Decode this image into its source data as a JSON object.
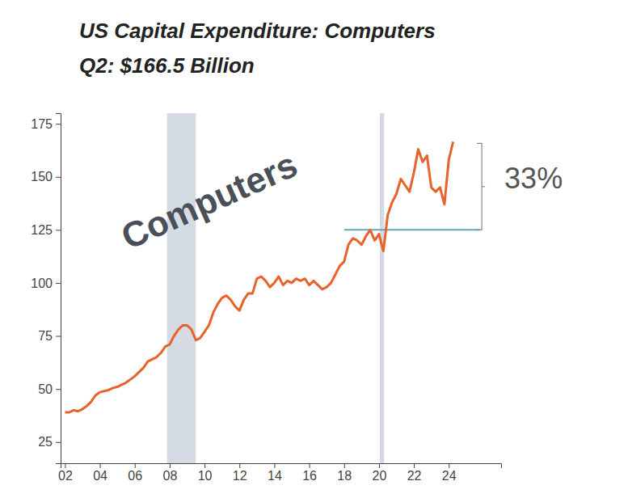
{
  "chart_data": {
    "type": "line",
    "title": "US Capital Expenditure: Computers",
    "subtitle": "Q2: $166.5 Billion",
    "watermark": "Computers",
    "annotation": "33%",
    "color": "#e8622c",
    "x": [
      2002,
      2002.25,
      2002.5,
      2002.75,
      2003,
      2003.25,
      2003.5,
      2003.75,
      2004,
      2004.25,
      2004.5,
      2004.75,
      2005,
      2005.25,
      2005.5,
      2005.75,
      2006,
      2006.25,
      2006.5,
      2006.75,
      2007,
      2007.25,
      2007.5,
      2007.75,
      2008,
      2008.25,
      2008.5,
      2008.75,
      2009,
      2009.25,
      2009.5,
      2009.75,
      2010,
      2010.25,
      2010.5,
      2010.75,
      2011,
      2011.25,
      2011.5,
      2011.75,
      2012,
      2012.25,
      2012.5,
      2012.75,
      2013,
      2013.25,
      2013.5,
      2013.75,
      2014,
      2014.25,
      2014.5,
      2014.75,
      2015,
      2015.25,
      2015.5,
      2015.75,
      2016,
      2016.25,
      2016.5,
      2016.75,
      2017,
      2017.25,
      2017.5,
      2017.75,
      2018,
      2018.25,
      2018.5,
      2018.75,
      2019,
      2019.25,
      2019.5,
      2019.75,
      2020,
      2020.25,
      2020.5,
      2020.75,
      2021,
      2021.25,
      2021.5,
      2021.75,
      2022,
      2022.25,
      2022.5,
      2022.75,
      2023,
      2023.25,
      2023.5,
      2023.75,
      2024,
      2024.25
    ],
    "values": [
      39,
      39,
      40,
      39.5,
      40.5,
      42,
      44,
      47,
      48.5,
      49,
      49.5,
      50.5,
      51,
      52,
      53,
      54.5,
      56,
      58,
      60,
      63,
      64,
      65,
      67,
      70,
      71,
      75,
      78,
      80,
      80,
      78,
      73,
      74,
      77,
      80,
      86,
      90,
      93,
      94,
      92,
      89,
      87,
      92,
      95,
      95,
      102,
      103,
      101,
      98,
      100,
      103,
      99,
      101,
      100,
      102,
      101,
      102,
      99,
      101,
      99,
      97,
      98,
      100,
      104,
      108,
      110,
      118,
      121,
      120,
      118,
      122,
      125,
      120,
      123,
      115,
      132,
      138,
      142,
      149,
      146,
      143,
      152,
      163,
      157,
      160,
      145,
      143,
      145,
      137,
      158,
      166.5
    ],
    "xlim": [
      2001.75,
      2027
    ],
    "ylim": [
      15,
      180
    ],
    "xticks": [
      {
        "value": 2002,
        "label": "02"
      },
      {
        "value": 2004,
        "label": "04"
      },
      {
        "value": 2006,
        "label": "06"
      },
      {
        "value": 2008,
        "label": "08"
      },
      {
        "value": 2010,
        "label": "10"
      },
      {
        "value": 2012,
        "label": "12"
      },
      {
        "value": 2014,
        "label": "14"
      },
      {
        "value": 2016,
        "label": "16"
      },
      {
        "value": 2018,
        "label": "18"
      },
      {
        "value": 2020,
        "label": "20"
      },
      {
        "value": 2022,
        "label": "22"
      },
      {
        "value": 2024,
        "label": "24"
      }
    ],
    "yticks": [
      25,
      50,
      75,
      100,
      125,
      150,
      175
    ],
    "recessions": [
      {
        "start": 2007.85,
        "end": 2009.5
      },
      {
        "start": 2020.05,
        "end": 2020.3
      }
    ],
    "reference_line": {
      "value": 125,
      "x_start": 2018,
      "x_end": 2025.8
    },
    "grid": false
  }
}
